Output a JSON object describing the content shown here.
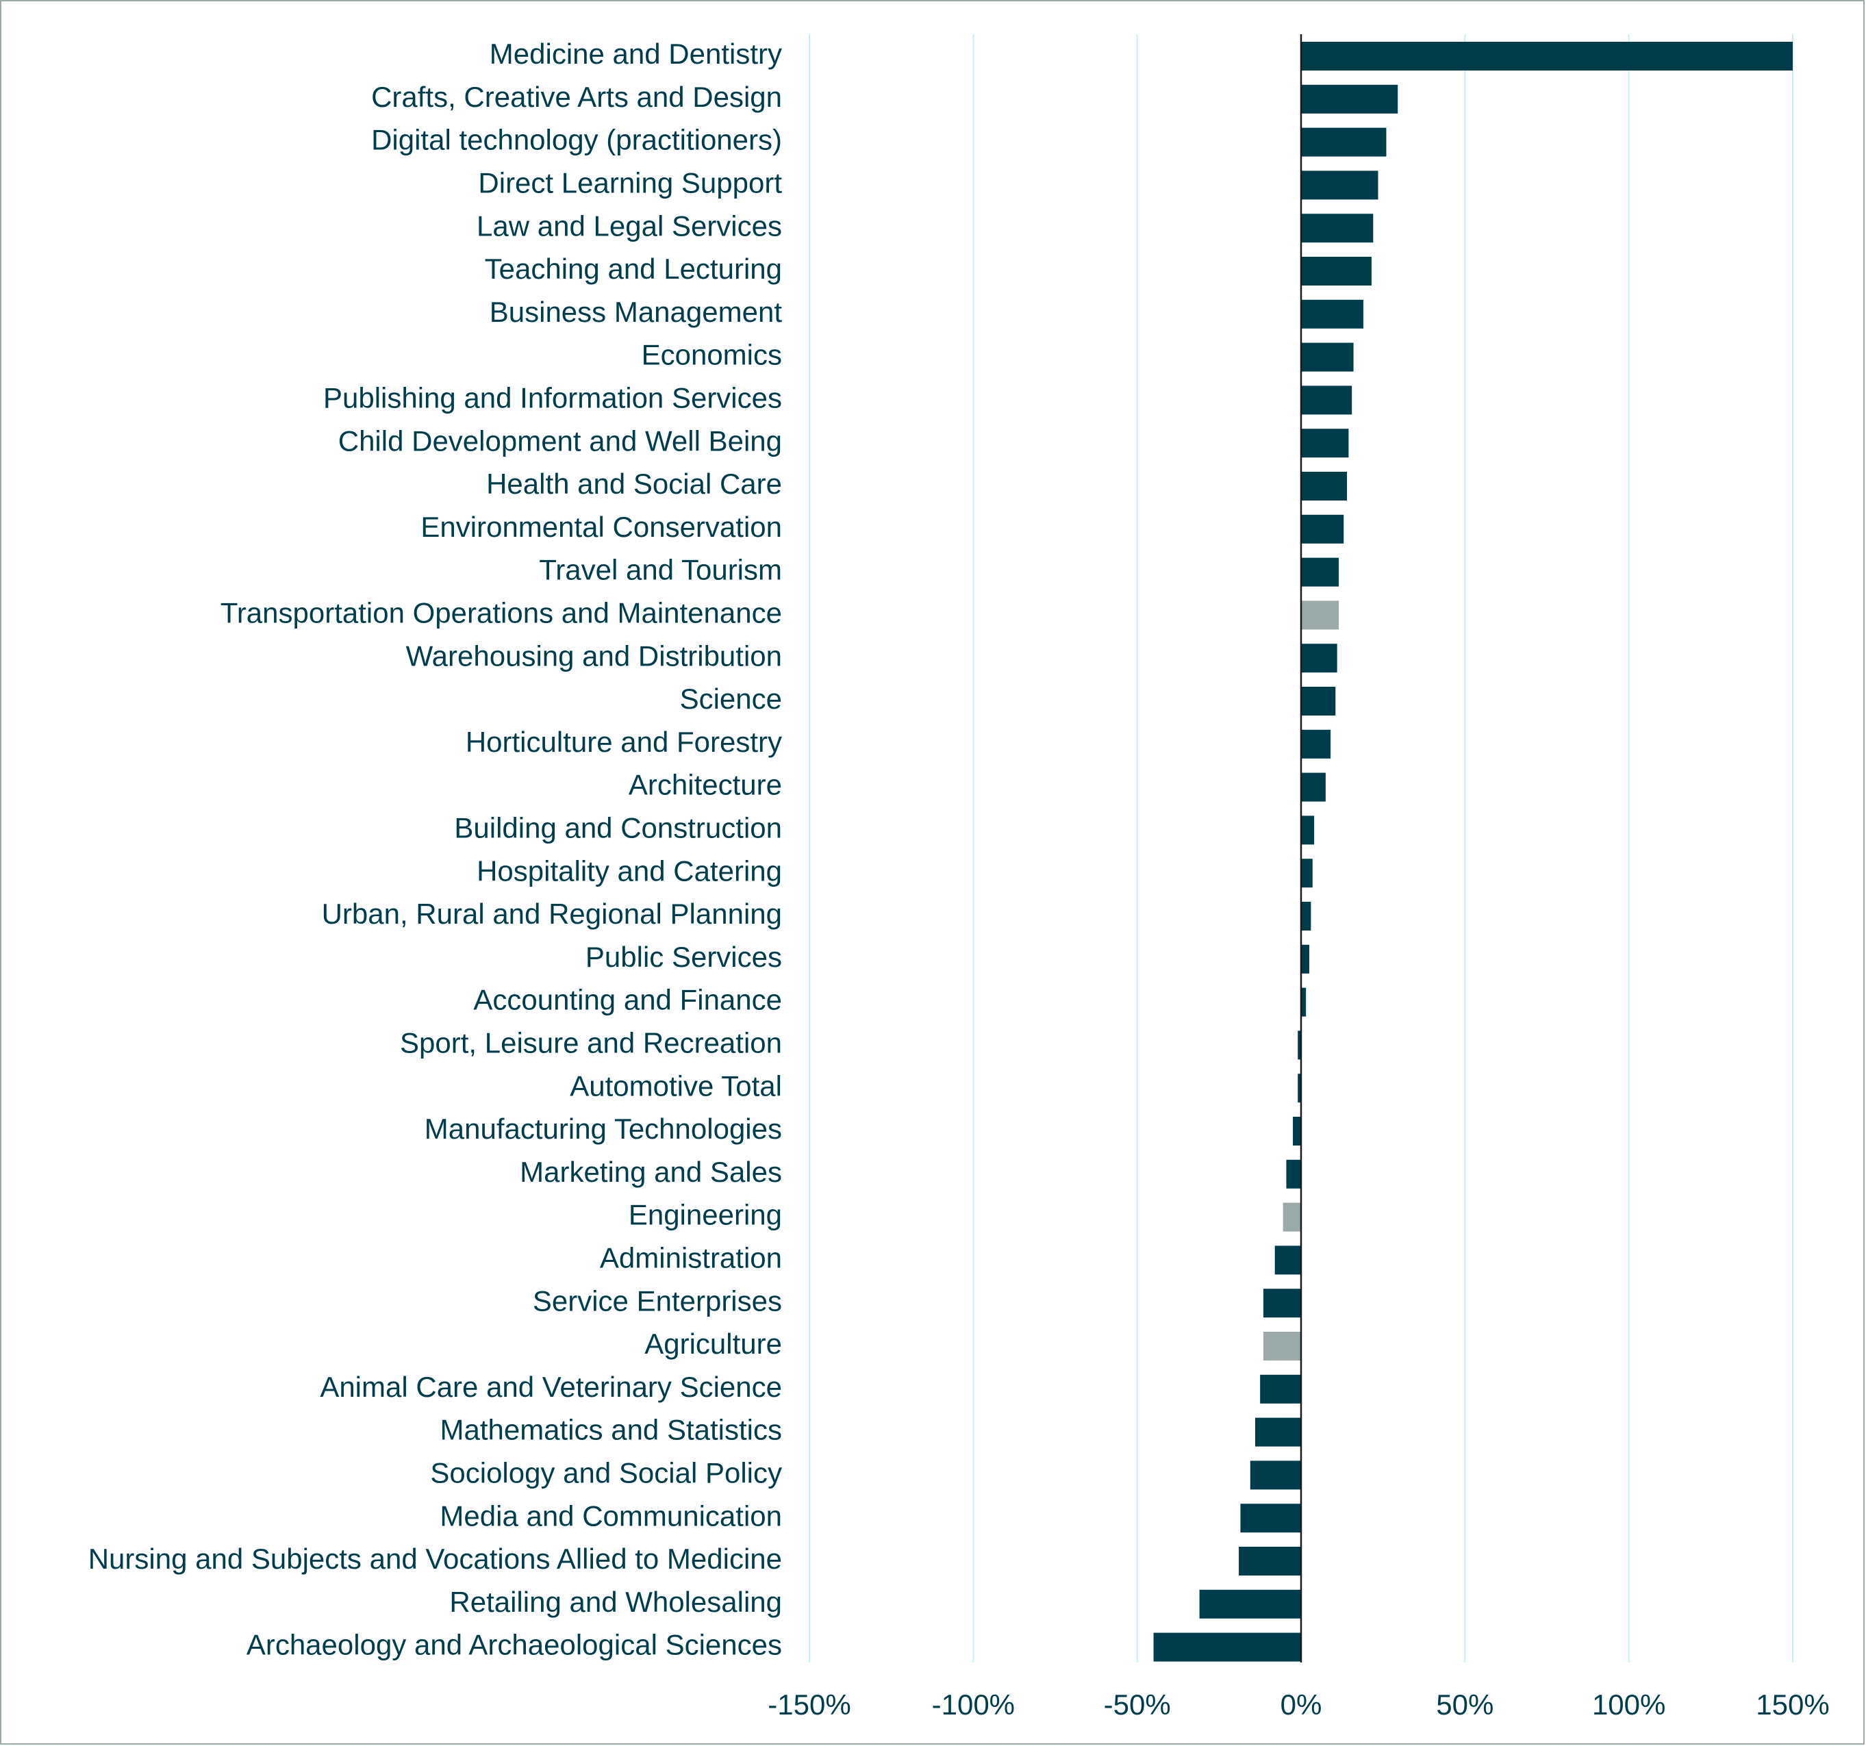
{
  "chart_data": {
    "type": "bar",
    "orientation": "horizontal",
    "categories": [
      "Medicine and Dentistry",
      "Crafts, Creative Arts and Design",
      "Digital technology (practitioners)",
      "Direct Learning Support",
      "Law and Legal Services",
      "Teaching and Lecturing",
      "Business Management",
      "Economics",
      "Publishing and Information Services",
      "Child Development and Well Being",
      "Health and Social Care",
      "Environmental Conservation",
      "Travel and Tourism",
      "Transportation Operations and Maintenance",
      "Warehousing and Distribution",
      "Science",
      "Horticulture and Forestry",
      "Architecture",
      "Building and Construction",
      "Hospitality and Catering",
      "Urban, Rural and Regional Planning",
      "Public Services",
      "Accounting and Finance",
      "Sport, Leisure and Recreation",
      "Automotive Total",
      "Manufacturing Technologies",
      "Marketing and Sales",
      "Engineering",
      "Administration",
      "Service Enterprises",
      "Agriculture",
      "Animal Care and Veterinary Science",
      "Mathematics and Statistics",
      "Sociology and Social Policy",
      "Media and Communication",
      "Nursing and Subjects and Vocations Allied to Medicine",
      "Retailing and Wholesaling",
      "Archaeology and Archaeological Sciences"
    ],
    "values": [
      150,
      29.5,
      26,
      23.5,
      22,
      21.5,
      19,
      16,
      15.5,
      14.5,
      14,
      13,
      11.5,
      11.5,
      11,
      10.5,
      9,
      7.5,
      4,
      3.5,
      3,
      2.5,
      1.5,
      -1,
      -1,
      -2.5,
      -4.5,
      -5.5,
      -8,
      -11.5,
      -11.5,
      -12.5,
      -14,
      -15.5,
      -18.5,
      -19,
      -31,
      -45
    ],
    "highlight": [
      false,
      false,
      false,
      false,
      false,
      false,
      false,
      false,
      false,
      false,
      false,
      false,
      false,
      true,
      false,
      false,
      false,
      false,
      false,
      false,
      false,
      false,
      false,
      false,
      false,
      false,
      false,
      true,
      false,
      false,
      true,
      false,
      false,
      false,
      false,
      false,
      false,
      false
    ],
    "xlim": [
      -150,
      150
    ],
    "xticks": [
      -150,
      -100,
      -50,
      0,
      50,
      100,
      150
    ],
    "xtick_labels": [
      "-150%",
      "-100%",
      "-50%",
      "0%",
      "50%",
      "100%",
      "150%"
    ],
    "title": "",
    "xlabel": "",
    "ylabel": "",
    "grid": "vertical",
    "legend": "none",
    "colors": {
      "bar": "#003d4c",
      "bar_highlight": "#9aaaa8",
      "gridline": "#c8eef6",
      "axis": "#1a1a1a",
      "text": "#003d4c",
      "border": "#9aaaa8"
    }
  }
}
